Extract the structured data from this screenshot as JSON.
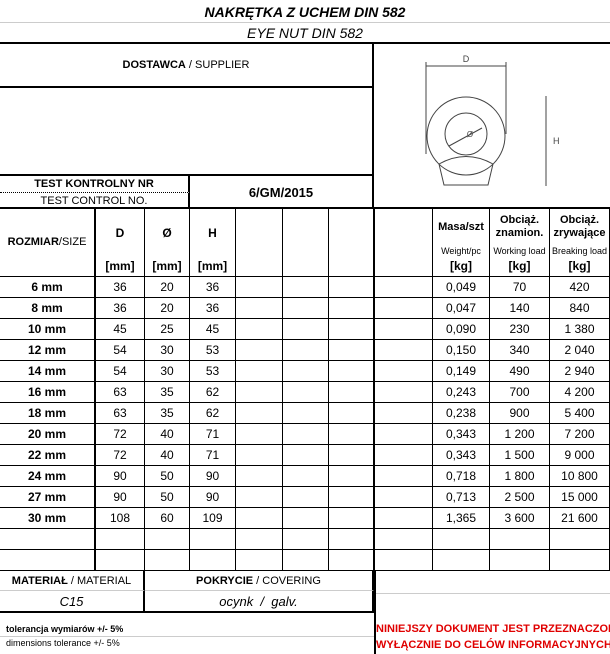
{
  "title": "NAKRĘTKA Z UCHEM  DIN 582",
  "subtitle": "EYE NUT  DIN 582",
  "supplier": {
    "label_pl": "DOSTAWCA",
    "sep": " / ",
    "label_en": "SUPPLIER"
  },
  "test": {
    "label_pl": "TEST KONTROLNY NR",
    "label_en": "TEST CONTROL NO.",
    "value": "6/GM/2015"
  },
  "diagram": {
    "d": "D",
    "o": "Ø",
    "h": "H"
  },
  "headers": {
    "size_pl": "ROZMIAR",
    "size_en": "/SIZE",
    "D": "D",
    "O": "Ø",
    "H": "H",
    "mm": "[mm]",
    "mass": "Masa/szt",
    "mass_en": "Weight/pc",
    "wl": "Obciąż. znamion.",
    "wl_en": "Working load",
    "bl": "Obciąż. zrywające",
    "bl_en": "Breaking load",
    "kg": "[kg]"
  },
  "rows": [
    [
      "6 mm",
      "36",
      "20",
      "36",
      "0,049",
      "70",
      "420"
    ],
    [
      "8 mm",
      "36",
      "20",
      "36",
      "0,047",
      "140",
      "840"
    ],
    [
      "10 mm",
      "45",
      "25",
      "45",
      "0,090",
      "230",
      "1 380"
    ],
    [
      "12 mm",
      "54",
      "30",
      "53",
      "0,150",
      "340",
      "2 040"
    ],
    [
      "14 mm",
      "54",
      "30",
      "53",
      "0,149",
      "490",
      "2 940"
    ],
    [
      "16 mm",
      "63",
      "35",
      "62",
      "0,243",
      "700",
      "4 200"
    ],
    [
      "18 mm",
      "63",
      "35",
      "62",
      "0,238",
      "900",
      "5 400"
    ],
    [
      "20 mm",
      "72",
      "40",
      "71",
      "0,343",
      "1 200",
      "7 200"
    ],
    [
      "22 mm",
      "72",
      "40",
      "71",
      "0,343",
      "1 500",
      "9 000"
    ],
    [
      "24 mm",
      "90",
      "50",
      "90",
      "0,718",
      "1 800",
      "10 800"
    ],
    [
      "27 mm",
      "90",
      "50",
      "90",
      "0,713",
      "2 500",
      "15 000"
    ],
    [
      "30 mm",
      "108",
      "60",
      "109",
      "1,365",
      "3 600",
      "21 600"
    ]
  ],
  "material": {
    "label_pl": "MATERIAŁ",
    "label_en": " / MATERIAL",
    "value": "C15"
  },
  "covering": {
    "label_pl": "POKRYCIE",
    "label_en": " / COVERING",
    "value": "ocynk  /  galv."
  },
  "tolerance": {
    "pl": "tolerancja wymiarów +/- 5%",
    "en": "dimensions tolerance +/- 5%"
  },
  "notice": {
    "line1": "NINIEJSZY DOKUMENT JEST PRZEZNACZONY",
    "line2": "WYŁĄCZNIE DO CELÓW INFORMACYJNYCH,"
  }
}
